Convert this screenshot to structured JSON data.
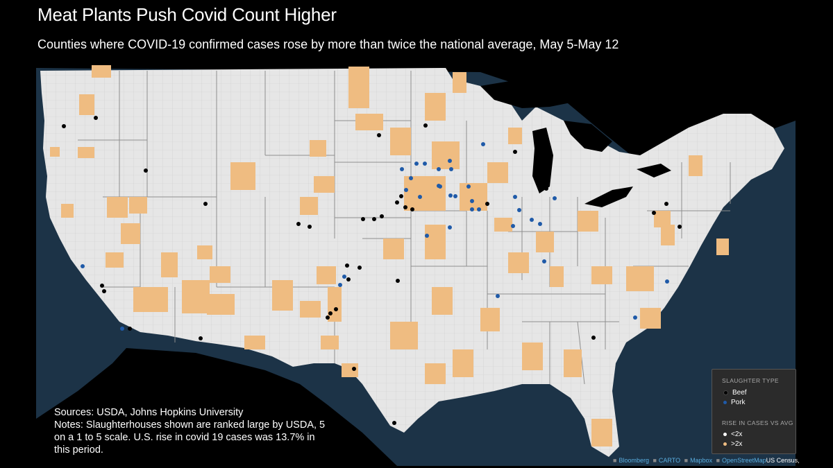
{
  "title": "Meat Plants Push Covid Count Higher",
  "subtitle": "Counties where COVID-19 confirmed cases rose by more than twice the national average, May 5-May 12",
  "notes": {
    "sources": "Sources: USDA, Johns Hopkins University",
    "notes": "Notes: Slaughterhouses shown are ranked large by USDA, 5 on a 1 to 5 scale. U.S. rise in covid 19 cases was 13.7% in this period."
  },
  "legend": {
    "slaughter_title": "SLAUGHTER TYPE",
    "beef": "Beef",
    "pork": "Pork",
    "rise_title": "RISE IN CASES VS AVG",
    "lt2x": "<2x",
    "gt2x": ">2x"
  },
  "attribution": {
    "bloomberg": "Bloomberg",
    "carto": "CARTO",
    "mapbox": "Mapbox",
    "osm": "OpenStreetMap",
    "census": "US Census,"
  },
  "colors": {
    "background": "#000000",
    "ocean": "#1c3347",
    "land": "#e6e6e6",
    "county_over_2x": "#efbc81",
    "beef": "#000000",
    "pork": "#1f5aa8"
  }
}
